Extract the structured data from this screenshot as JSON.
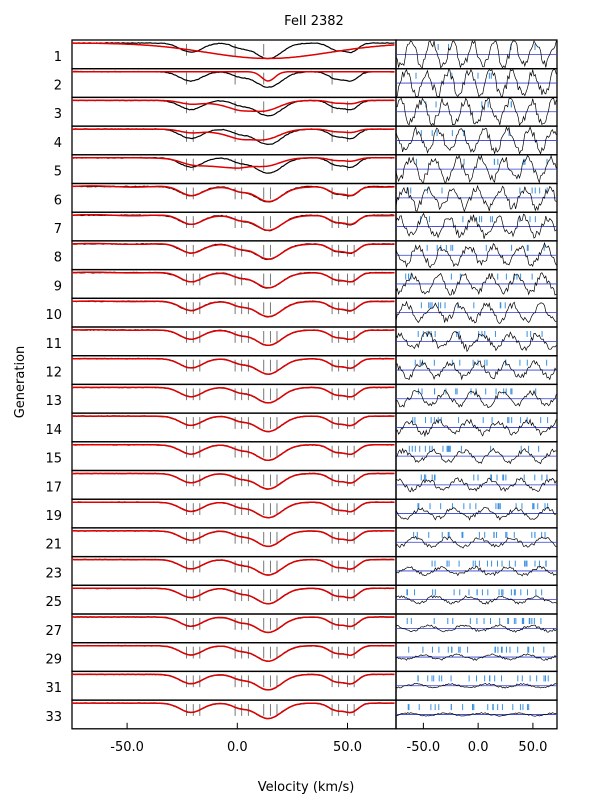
{
  "chart_data": {
    "type": "line",
    "title": "FeII   2382",
    "xlabel": "Velocity (km/s)",
    "ylabel": "Generation",
    "generations": [
      "1",
      "2",
      "3",
      "4",
      "5",
      "6",
      "7",
      "8",
      "9",
      "10",
      "11",
      "12",
      "13",
      "14",
      "15",
      "17",
      "19",
      "21",
      "23",
      "25",
      "27",
      "29",
      "31",
      "33"
    ],
    "left_panel": {
      "content": "normalized flux vs velocity; black = observed spectrum, red = model fit",
      "xlim": [
        -75,
        72
      ],
      "xticks": [
        -50.0,
        0.0,
        50.0
      ],
      "xtick_labels": [
        "-50.0",
        "0.0",
        "50.0"
      ],
      "absorption_components_kms": [
        -21,
        1,
        14,
        45,
        52
      ],
      "component_depths": [
        0.45,
        0.2,
        0.75,
        0.35,
        0.4
      ],
      "component_widths_kms": [
        5,
        3.5,
        6,
        3.5,
        3
      ],
      "model_fit_by_generation": [
        {
          "gen": "1",
          "center_kms": 14,
          "depth": 0.75,
          "width_kms": 28
        },
        {
          "gen": "2",
          "center_kms": 14,
          "depth": 0.45,
          "width_kms": 3
        },
        {
          "gen": "3",
          "center_kms": 3,
          "depth": 0.4,
          "width_kms": 10
        },
        {
          "gen": "4",
          "center_kms": 3,
          "depth": 0.4,
          "width_kms": 10
        },
        {
          "gen": "5",
          "center_kms": -5,
          "depth": 0.45,
          "width_kms": 12
        }
      ]
    },
    "right_panel": {
      "content": "residuals vs velocity with blue reference lines",
      "xlim": [
        -75,
        72
      ],
      "xticks": [
        -50.0,
        0.0,
        50.0
      ],
      "xtick_labels": [
        "-50.0",
        "0.0",
        "50.0"
      ]
    },
    "colors": {
      "observed": "#000000",
      "fit": "#e00000",
      "residual_ref": "#2e3cd6",
      "component_marker": "#3a8fe0",
      "tick": "#555555"
    }
  }
}
